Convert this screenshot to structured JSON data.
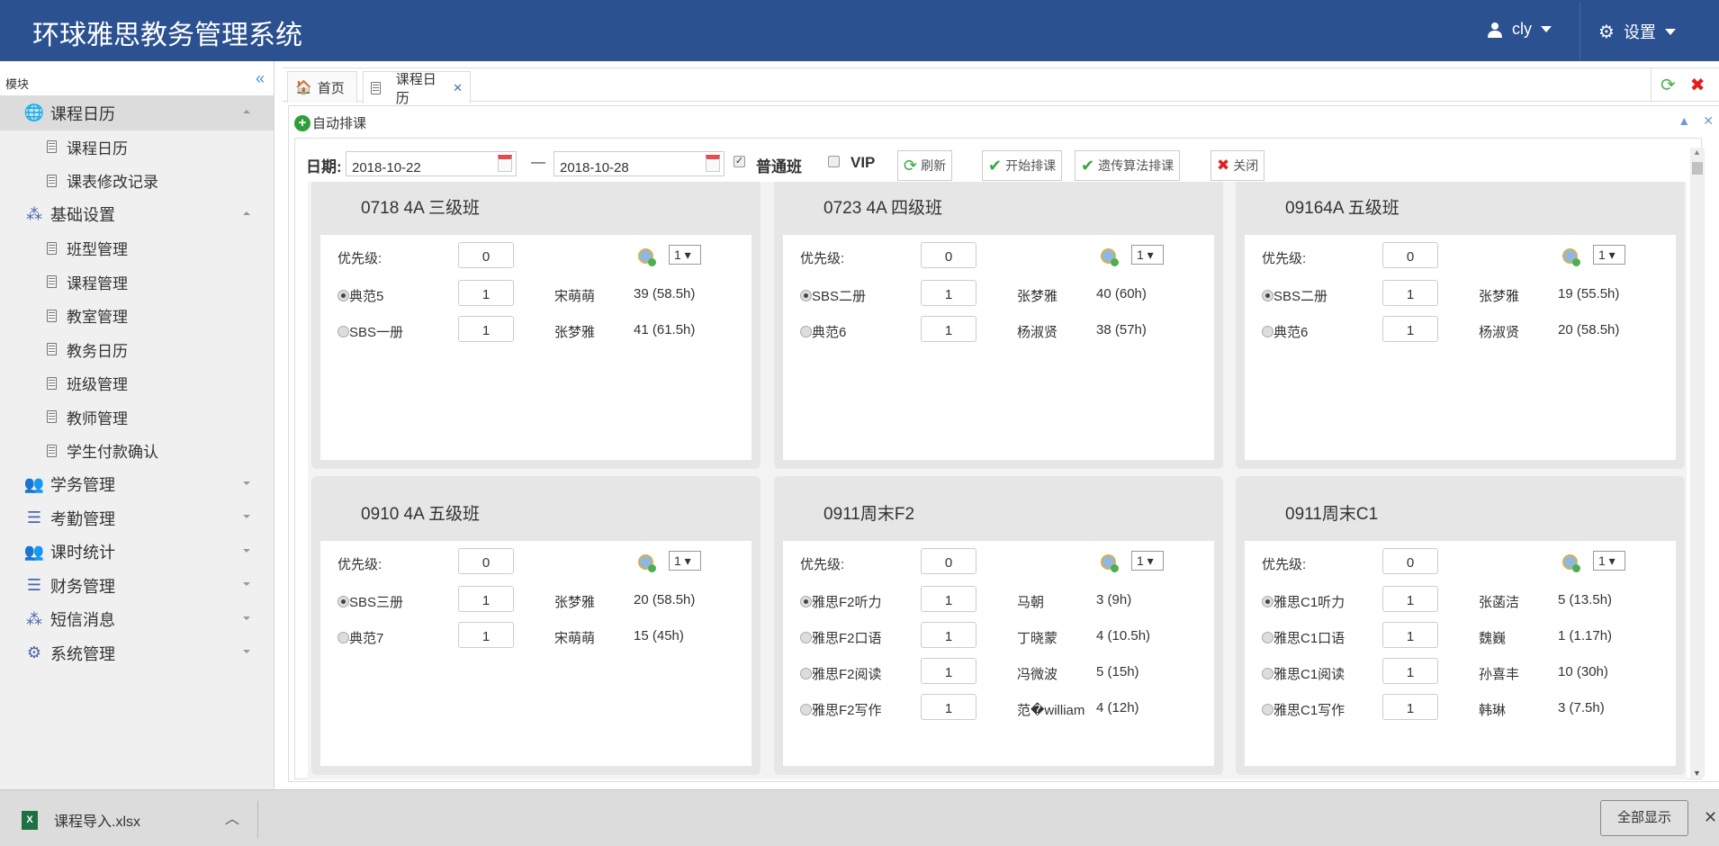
{
  "app": {
    "title": "环球雅思教务管理系统",
    "user": "cly",
    "settings": "设置",
    "header_color": "#2b5190"
  },
  "sidebar": {
    "header": "模块",
    "groups": [
      {
        "label": "课程日历",
        "icon": "globe-icon",
        "expanded": true,
        "items": [
          "课程日历",
          "课表修改记录"
        ]
      },
      {
        "label": "基础设置",
        "icon": "nodes-icon",
        "expanded": true,
        "items": [
          "班型管理",
          "课程管理",
          "教室管理",
          "教务日历",
          "班级管理",
          "教师管理",
          "学生付款确认"
        ]
      },
      {
        "label": "学务管理",
        "icon": "users-icon",
        "expanded": false,
        "items": []
      },
      {
        "label": "考勤管理",
        "icon": "list-icon",
        "expanded": false,
        "items": []
      },
      {
        "label": "课时统计",
        "icon": "users-icon",
        "expanded": false,
        "items": []
      },
      {
        "label": "财务管理",
        "icon": "list-icon",
        "expanded": false,
        "items": []
      },
      {
        "label": "短信消息",
        "icon": "nodes-icon",
        "expanded": false,
        "items": []
      },
      {
        "label": "系统管理",
        "icon": "gear-icon",
        "expanded": false,
        "items": []
      }
    ]
  },
  "tabs": [
    {
      "label": "首页",
      "icon": "home-icon"
    },
    {
      "label": "课程日历",
      "icon": "document-icon",
      "closable": true
    }
  ],
  "panel": {
    "title": "自动排课"
  },
  "toolbar": {
    "date_label": "日期:",
    "date_from": "2018-10-22",
    "date_sep": "—",
    "date_to": "2018-10-28",
    "regular_label": "普通班",
    "regular_checked": true,
    "vip_label": "VIP",
    "vip_checked": false,
    "refresh": "刷新",
    "start": "开始排课",
    "genetic": "遗传算法排课",
    "close": "关闭"
  },
  "cards": [
    {
      "title": "0718 4A 三级班",
      "priority_label": "优先级:",
      "priority": "0",
      "select": "1",
      "courses": [
        {
          "name": "典范5",
          "selected": true,
          "value": "1",
          "teacher": "宋萌萌",
          "hours": "39 (58.5h)"
        },
        {
          "name": "SBS一册",
          "selected": false,
          "value": "1",
          "teacher": "张梦雅",
          "hours": "41 (61.5h)"
        }
      ]
    },
    {
      "title": "0723 4A 四级班",
      "priority_label": "优先级:",
      "priority": "0",
      "select": "1",
      "courses": [
        {
          "name": "SBS二册",
          "selected": true,
          "value": "1",
          "teacher": "张梦雅",
          "hours": "40 (60h)"
        },
        {
          "name": "典范6",
          "selected": false,
          "value": "1",
          "teacher": "杨淑贤",
          "hours": "38 (57h)"
        }
      ]
    },
    {
      "title": "09164A 五级班",
      "priority_label": "优先级:",
      "priority": "0",
      "select": "1",
      "courses": [
        {
          "name": "SBS二册",
          "selected": true,
          "value": "1",
          "teacher": "张梦雅",
          "hours": "19 (55.5h)"
        },
        {
          "name": "典范6",
          "selected": false,
          "value": "1",
          "teacher": "杨淑贤",
          "hours": "20 (58.5h)"
        }
      ]
    },
    {
      "title": "0910 4A 五级班",
      "priority_label": "优先级:",
      "priority": "0",
      "select": "1",
      "courses": [
        {
          "name": "SBS三册",
          "selected": true,
          "value": "1",
          "teacher": "张梦雅",
          "hours": "20 (58.5h)"
        },
        {
          "name": "典范7",
          "selected": false,
          "value": "1",
          "teacher": "宋萌萌",
          "hours": "15 (45h)"
        }
      ]
    },
    {
      "title": "0911周末F2",
      "priority_label": "优先级:",
      "priority": "0",
      "select": "1",
      "courses": [
        {
          "name": "雅思F2听力",
          "selected": true,
          "value": "1",
          "teacher": "马朝",
          "hours": "3 (9h)"
        },
        {
          "name": "雅思F2口语",
          "selected": false,
          "value": "1",
          "teacher": "丁晓蒙",
          "hours": "4 (10.5h)"
        },
        {
          "name": "雅思F2阅读",
          "selected": false,
          "value": "1",
          "teacher": "冯微波",
          "hours": "5 (15h)"
        },
        {
          "name": "雅思F2写作",
          "selected": false,
          "value": "1",
          "teacher": "范�william",
          "hours": "4 (12h)"
        }
      ]
    },
    {
      "title": "0911周末C1",
      "priority_label": "优先级:",
      "priority": "0",
      "select": "1",
      "courses": [
        {
          "name": "雅思C1听力",
          "selected": true,
          "value": "1",
          "teacher": "张菡洁",
          "hours": "5 (13.5h)"
        },
        {
          "name": "雅思C1口语",
          "selected": false,
          "value": "1",
          "teacher": "魏巍",
          "hours": "1 (1.17h)"
        },
        {
          "name": "雅思C1阅读",
          "selected": false,
          "value": "1",
          "teacher": "孙喜丰",
          "hours": "10 (30h)"
        },
        {
          "name": "雅思C1写作",
          "selected": false,
          "value": "1",
          "teacher": "韩琳",
          "hours": "3 (7.5h)"
        }
      ]
    }
  ],
  "downloads": {
    "file": "课程导入.xlsx",
    "show_all": "全部显示"
  }
}
